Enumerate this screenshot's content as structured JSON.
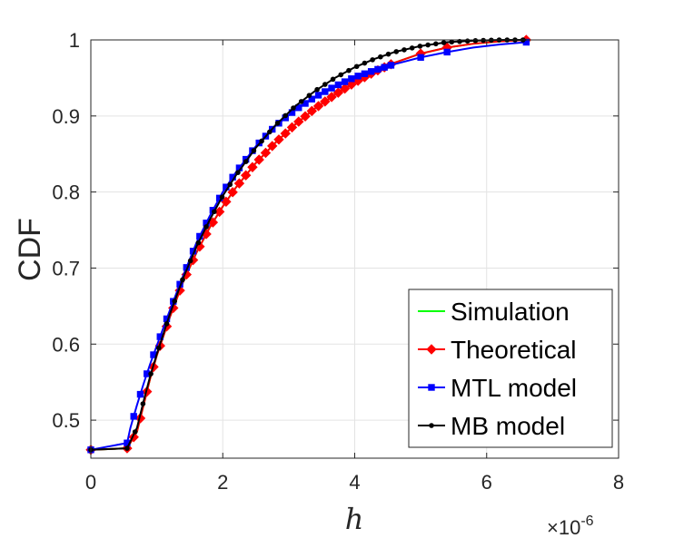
{
  "chart_data": {
    "type": "line",
    "title": "",
    "xlabel": "h",
    "ylabel": "CDF",
    "x_exponent_label": "×10",
    "x_exponent_power": "-6",
    "xlim": [
      0,
      8
    ],
    "ylim": [
      0.45,
      1.0
    ],
    "x_ticks": [
      0,
      2,
      4,
      6,
      8
    ],
    "x_tick_labels": [
      "0",
      "2",
      "4",
      "6",
      "8"
    ],
    "y_ticks": [
      0.5,
      0.6,
      0.7,
      0.8,
      0.9,
      1.0
    ],
    "y_tick_labels": [
      "0.5",
      "0.6",
      "0.7",
      "0.8",
      "0.9",
      "1"
    ],
    "grid": true,
    "legend_position": "bottom-right",
    "series": [
      {
        "name": "Simulation",
        "color": "#00ff00",
        "marker": "none",
        "x": [
          0,
          0.55,
          0.7,
          0.8,
          0.9,
          1.0,
          1.2,
          1.4,
          1.6,
          1.8,
          2.0,
          2.2,
          2.5,
          2.8,
          3.1,
          3.4,
          3.7,
          4.0,
          4.3,
          4.6,
          5.0,
          5.4,
          5.8,
          6.2,
          6.6
        ],
        "y": [
          0.461,
          0.463,
          0.485,
          0.52,
          0.555,
          0.585,
          0.636,
          0.682,
          0.72,
          0.753,
          0.781,
          0.806,
          0.838,
          0.865,
          0.889,
          0.91,
          0.928,
          0.944,
          0.958,
          0.97,
          0.982,
          0.99,
          0.995,
          0.998,
          1.0
        ]
      },
      {
        "name": "Theoretical",
        "color": "#ff0000",
        "marker": "diamond",
        "x": [
          0,
          0.55,
          0.7,
          0.8,
          0.9,
          1.0,
          1.2,
          1.4,
          1.6,
          1.8,
          2.0,
          2.2,
          2.5,
          2.8,
          3.1,
          3.4,
          3.7,
          4.0,
          4.3,
          4.6,
          5.0,
          5.4,
          5.8,
          6.2,
          6.6
        ],
        "y": [
          0.461,
          0.463,
          0.485,
          0.52,
          0.555,
          0.585,
          0.636,
          0.682,
          0.72,
          0.753,
          0.781,
          0.806,
          0.838,
          0.865,
          0.889,
          0.91,
          0.928,
          0.944,
          0.958,
          0.97,
          0.982,
          0.99,
          0.995,
          0.998,
          1.0
        ]
      },
      {
        "name": "MTL model",
        "color": "#0000ff",
        "marker": "square",
        "x": [
          0,
          0.55,
          0.6,
          0.7,
          0.8,
          0.9,
          1.0,
          1.2,
          1.4,
          1.6,
          1.8,
          2.0,
          2.2,
          2.5,
          2.8,
          3.1,
          3.4,
          3.7,
          4.0,
          4.3,
          4.6,
          5.0,
          5.4,
          5.8,
          6.2,
          6.6
        ],
        "y": [
          0.461,
          0.47,
          0.49,
          0.52,
          0.548,
          0.574,
          0.598,
          0.645,
          0.69,
          0.733,
          0.768,
          0.8,
          0.826,
          0.86,
          0.887,
          0.908,
          0.925,
          0.939,
          0.951,
          0.96,
          0.968,
          0.977,
          0.984,
          0.99,
          0.994,
          0.997
        ]
      },
      {
        "name": "MB model",
        "color": "#000000",
        "marker": "dot",
        "x": [
          0,
          0.55,
          0.7,
          0.8,
          0.9,
          1.0,
          1.2,
          1.4,
          1.6,
          1.8,
          2.0,
          2.2,
          2.5,
          2.8,
          3.1,
          3.4,
          3.7,
          4.0,
          4.3,
          4.6,
          5.0,
          5.4,
          5.8,
          6.2,
          6.6
        ],
        "y": [
          0.461,
          0.463,
          0.49,
          0.525,
          0.558,
          0.587,
          0.64,
          0.687,
          0.728,
          0.763,
          0.795,
          0.822,
          0.858,
          0.888,
          0.913,
          0.933,
          0.95,
          0.964,
          0.975,
          0.984,
          0.992,
          0.997,
          0.999,
          1.0,
          1.0
        ]
      }
    ]
  }
}
